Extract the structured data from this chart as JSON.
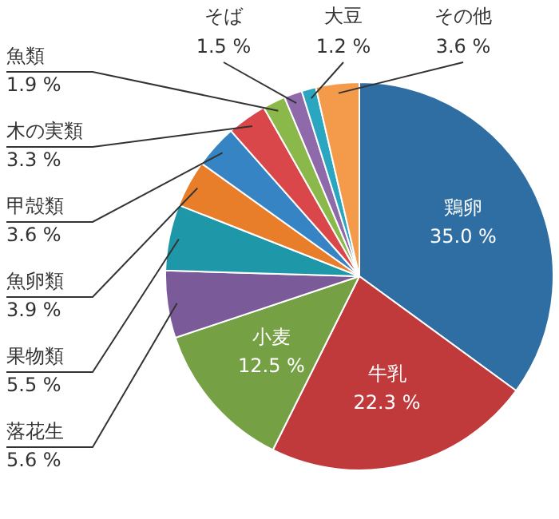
{
  "chart_data": {
    "type": "pie",
    "categories": [
      "鶏卵",
      "牛乳",
      "小麦",
      "落花生",
      "果物類",
      "魚卵類",
      "甲殻類",
      "木の実類",
      "魚類",
      "そば",
      "大豆",
      "その他"
    ],
    "values": [
      35.0,
      22.3,
      12.5,
      5.6,
      5.5,
      3.9,
      3.6,
      3.3,
      1.9,
      1.5,
      1.2,
      3.6
    ],
    "value_labels": [
      "35.0 %",
      "22.3 %",
      "12.5 %",
      "5.6 %",
      "5.5 %",
      "3.9 %",
      "3.6 %",
      "3.3 %",
      "1.9 %",
      "1.5 %",
      "1.2 %",
      "3.6 %"
    ],
    "colors": [
      "#2e6ea3",
      "#c0393b",
      "#76a044",
      "#7b5a9a",
      "#1e97a8",
      "#e87d2a",
      "#3784c4",
      "#d9474a",
      "#8bb84a",
      "#8e6aaa",
      "#2aa6c0",
      "#f39a4b"
    ],
    "legend": false
  }
}
